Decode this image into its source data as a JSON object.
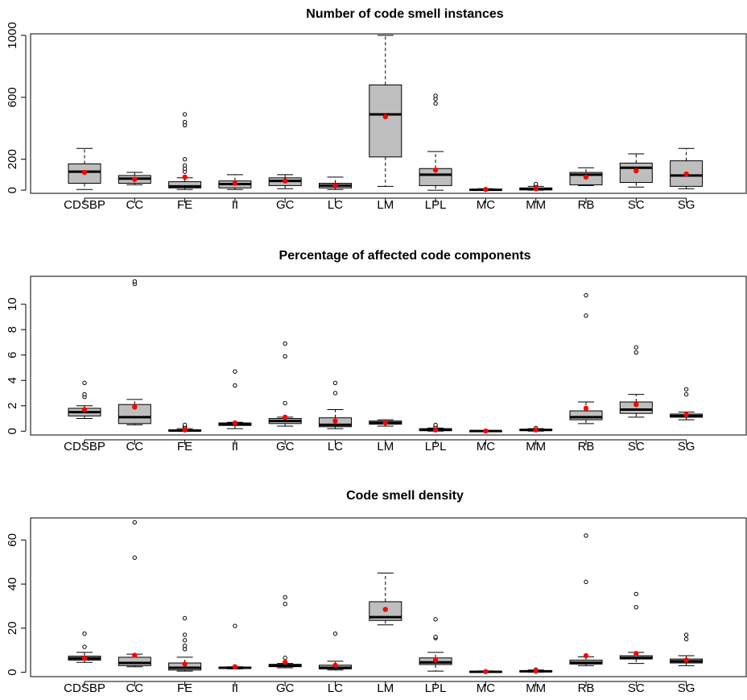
{
  "chart_data": [
    {
      "type": "box",
      "title": "Number of code smell instances",
      "categories": [
        "CDSBP",
        "CC",
        "FE",
        "II",
        "GC",
        "LC",
        "LM",
        "LPL",
        "MC",
        "MM",
        "RB",
        "SC",
        "SG"
      ],
      "ylim": [
        -20,
        1010
      ],
      "yticks": [
        0,
        200,
        600,
        1000
      ],
      "boxes": [
        {
          "low": 5,
          "q1": 45,
          "median": 120,
          "q3": 170,
          "high": 270,
          "mean": 115,
          "outliers": []
        },
        {
          "low": 35,
          "q1": 45,
          "median": 75,
          "q3": 95,
          "high": 115,
          "mean": 70,
          "outliers": []
        },
        {
          "low": 5,
          "q1": 15,
          "median": 25,
          "q3": 55,
          "high": 80,
          "mean": 85,
          "outliers": [
            120,
            140,
            160,
            200,
            420,
            440,
            490
          ]
        },
        {
          "low": 5,
          "q1": 15,
          "median": 40,
          "q3": 60,
          "high": 100,
          "mean": 45,
          "outliers": []
        },
        {
          "low": 10,
          "q1": 30,
          "median": 60,
          "q3": 80,
          "high": 100,
          "mean": 60,
          "outliers": []
        },
        {
          "low": 5,
          "q1": 15,
          "median": 30,
          "q3": 45,
          "high": 85,
          "mean": 30,
          "outliers": []
        },
        {
          "low": 25,
          "q1": 215,
          "median": 490,
          "q3": 680,
          "high": 1000,
          "mean": 475,
          "outliers": []
        },
        {
          "low": 0,
          "q1": 30,
          "median": 100,
          "q3": 140,
          "high": 250,
          "mean": 130,
          "outliers": [
            560,
            590,
            610
          ]
        },
        {
          "low": 0,
          "q1": 0,
          "median": 3,
          "q3": 6,
          "high": 10,
          "mean": 5,
          "outliers": []
        },
        {
          "low": 0,
          "q1": 2,
          "median": 8,
          "q3": 15,
          "high": 25,
          "mean": 10,
          "outliers": [
            30,
            40
          ]
        },
        {
          "low": 30,
          "q1": 35,
          "median": 100,
          "q3": 115,
          "high": 145,
          "mean": 85,
          "outliers": []
        },
        {
          "low": 20,
          "q1": 50,
          "median": 145,
          "q3": 175,
          "high": 235,
          "mean": 125,
          "outliers": []
        },
        {
          "low": 10,
          "q1": 25,
          "median": 95,
          "q3": 190,
          "high": 270,
          "mean": 105,
          "outliers": []
        }
      ]
    },
    {
      "type": "box",
      "title": "Percentage of affected code components",
      "categories": [
        "CDSBP",
        "CC",
        "FE",
        "II",
        "GC",
        "LC",
        "LM",
        "LPL",
        "MC",
        "MM",
        "RB",
        "SC",
        "SG"
      ],
      "ylim": [
        -0.3,
        12.2
      ],
      "yticks": [
        0,
        2,
        4,
        6,
        8,
        10
      ],
      "boxes": [
        {
          "low": 1.0,
          "q1": 1.2,
          "median": 1.5,
          "q3": 1.8,
          "high": 2.0,
          "mean": 1.7,
          "outliers": [
            2.7,
            2.9,
            3.8
          ]
        },
        {
          "low": 0.5,
          "q1": 0.6,
          "median": 1.1,
          "q3": 2.1,
          "high": 2.5,
          "mean": 1.9,
          "outliers": [
            11.6,
            11.8
          ]
        },
        {
          "low": 0.0,
          "q1": 0.0,
          "median": 0.05,
          "q3": 0.1,
          "high": 0.2,
          "mean": 0.1,
          "outliers": [
            0.3,
            0.4,
            0.5
          ]
        },
        {
          "low": 0.2,
          "q1": 0.45,
          "median": 0.55,
          "q3": 0.65,
          "high": 0.7,
          "mean": 0.65,
          "outliers": [
            3.6,
            4.7
          ]
        },
        {
          "low": 0.4,
          "q1": 0.6,
          "median": 0.8,
          "q3": 1.0,
          "high": 1.1,
          "mean": 1.1,
          "outliers": [
            2.2,
            5.9,
            6.9
          ]
        },
        {
          "low": 0.2,
          "q1": 0.35,
          "median": 0.5,
          "q3": 1.05,
          "high": 1.7,
          "mean": 0.8,
          "outliers": [
            3.0,
            3.8
          ]
        },
        {
          "low": 0.4,
          "q1": 0.55,
          "median": 0.65,
          "q3": 0.8,
          "high": 0.9,
          "mean": 0.65,
          "outliers": []
        },
        {
          "low": 0.0,
          "q1": 0.05,
          "median": 0.1,
          "q3": 0.2,
          "high": 0.25,
          "mean": 0.1,
          "outliers": [
            0.35,
            0.5
          ]
        },
        {
          "low": 0.0,
          "q1": 0.0,
          "median": 0.01,
          "q3": 0.02,
          "high": 0.03,
          "mean": 0.01,
          "outliers": []
        },
        {
          "low": 0.0,
          "q1": 0.05,
          "median": 0.1,
          "q3": 0.15,
          "high": 0.2,
          "mean": 0.1,
          "outliers": [
            0.25
          ]
        },
        {
          "low": 0.6,
          "q1": 0.9,
          "median": 1.1,
          "q3": 1.6,
          "high": 2.3,
          "mean": 1.8,
          "outliers": [
            9.1,
            10.7
          ]
        },
        {
          "low": 1.1,
          "q1": 1.4,
          "median": 1.7,
          "q3": 2.3,
          "high": 2.9,
          "mean": 2.1,
          "outliers": [
            6.2,
            6.6
          ]
        },
        {
          "low": 0.9,
          "q1": 1.1,
          "median": 1.2,
          "q3": 1.35,
          "high": 1.5,
          "mean": 1.3,
          "outliers": [
            2.9,
            3.3
          ]
        }
      ]
    },
    {
      "type": "box",
      "title": "Code smell density",
      "categories": [
        "CDSBP",
        "CC",
        "FE",
        "II",
        "GC",
        "LC",
        "LM",
        "LPL",
        "MC",
        "MM",
        "RB",
        "SC",
        "SG"
      ],
      "ylim": [
        -2,
        70
      ],
      "yticks": [
        0,
        20,
        40,
        60
      ],
      "boxes": [
        {
          "low": 4.5,
          "q1": 5.5,
          "median": 6.3,
          "q3": 7.3,
          "high": 9,
          "mean": 6.3,
          "outliers": [
            11.5,
            17.5
          ]
        },
        {
          "low": 2.5,
          "q1": 3,
          "median": 4.2,
          "q3": 6.8,
          "high": 8.2,
          "mean": 7.7,
          "outliers": [
            52,
            68
          ]
        },
        {
          "low": 0.5,
          "q1": 1,
          "median": 2,
          "q3": 4.2,
          "high": 6.8,
          "mean": 3.7,
          "outliers": [
            10.5,
            12,
            14.5,
            17,
            24.5
          ]
        },
        {
          "low": 1.5,
          "q1": 1.8,
          "median": 2,
          "q3": 2.3,
          "high": 2.5,
          "mean": 2.5,
          "outliers": [
            21
          ]
        },
        {
          "low": 2,
          "q1": 2.5,
          "median": 3,
          "q3": 3.6,
          "high": 4,
          "mean": 4.5,
          "outliers": [
            6.5,
            31,
            34
          ]
        },
        {
          "low": 1,
          "q1": 1.5,
          "median": 2,
          "q3": 3.2,
          "high": 5,
          "mean": 3.2,
          "outliers": [
            17.5
          ]
        },
        {
          "low": 21.5,
          "q1": 23.5,
          "median": 25,
          "q3": 32,
          "high": 45,
          "mean": 28.5,
          "outliers": []
        },
        {
          "low": 0.5,
          "q1": 3.5,
          "median": 4.5,
          "q3": 6.5,
          "high": 9,
          "mean": 5.5,
          "outliers": [
            15.5,
            16,
            24
          ]
        },
        {
          "low": 0,
          "q1": 0,
          "median": 0.2,
          "q3": 0.4,
          "high": 0.6,
          "mean": 0.3,
          "outliers": []
        },
        {
          "low": 0,
          "q1": 0.2,
          "median": 0.4,
          "q3": 0.7,
          "high": 1,
          "mean": 0.5,
          "outliers": [
            1.2
          ]
        },
        {
          "low": 3,
          "q1": 3.7,
          "median": 4.3,
          "q3": 5.5,
          "high": 7,
          "mean": 7.5,
          "outliers": [
            41,
            62
          ]
        },
        {
          "low": 4,
          "q1": 6,
          "median": 6.5,
          "q3": 7.5,
          "high": 9,
          "mean": 8.5,
          "outliers": [
            29.5,
            35.5
          ]
        },
        {
          "low": 3,
          "q1": 4.2,
          "median": 5,
          "q3": 6,
          "high": 7.5,
          "mean": 5.5,
          "outliers": [
            15,
            17
          ]
        }
      ]
    }
  ],
  "colors": {
    "box_fill": "#bebebe",
    "mean_marker": "#ff0000",
    "line": "#000000"
  }
}
